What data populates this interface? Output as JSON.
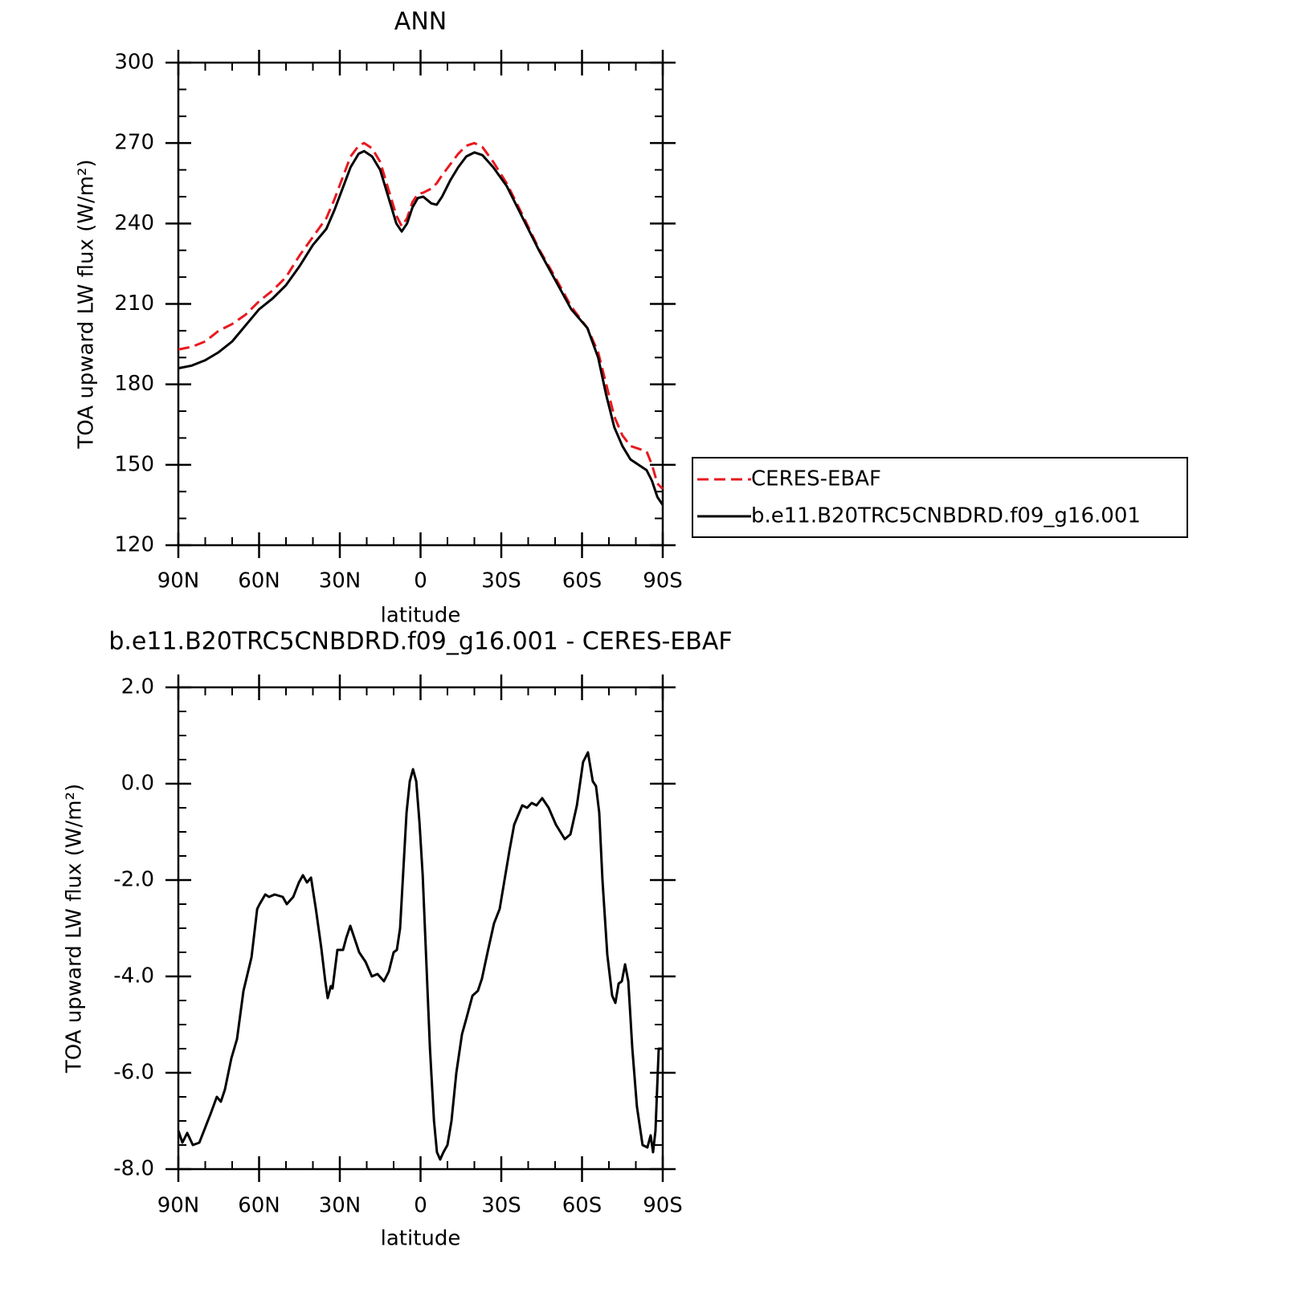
{
  "chart_data": [
    {
      "type": "line",
      "title": "ANN",
      "xlabel": "latitude",
      "ylabel": "TOA upward LW flux (W/m²)",
      "x": [
        90,
        85,
        80,
        75,
        70,
        65,
        60,
        55,
        50,
        45,
        40,
        35,
        32,
        29,
        26,
        23,
        21,
        18,
        15,
        12,
        9,
        7,
        5,
        3,
        1,
        -1,
        -4,
        -6,
        -8,
        -11,
        -14,
        -17,
        -20,
        -23,
        -27,
        -32,
        -38,
        -44,
        -50,
        -56,
        -62,
        -66,
        -69,
        -72,
        -75,
        -78,
        -81,
        -84,
        -86,
        -88,
        -90
      ],
      "series": [
        {
          "name": "CERES-EBAF",
          "color": "#e8191f",
          "dashed": true,
          "values": [
            193,
            194,
            196,
            200,
            202.5,
            206,
            211,
            215,
            220,
            228,
            235,
            242,
            249,
            257,
            265,
            269,
            270,
            268,
            263,
            253,
            243,
            239,
            242,
            248,
            251,
            251.5,
            253,
            255,
            258,
            262,
            266,
            269,
            270,
            268.5,
            263,
            255,
            243,
            230.5,
            220,
            209,
            201,
            192,
            180,
            168,
            161,
            157,
            156,
            155,
            150,
            143,
            141
          ]
        },
        {
          "name": "b.e11.B20TRC5CNBDRD.f09_g16.001",
          "color": "#000000",
          "dashed": false,
          "values": [
            186,
            187,
            189,
            192,
            196,
            202,
            208,
            212,
            217,
            224,
            232,
            238,
            245,
            253,
            261,
            266,
            267,
            265,
            260,
            250,
            240,
            237,
            240,
            246,
            249.5,
            250,
            247.5,
            247,
            250,
            256,
            261,
            265,
            266.5,
            265.5,
            261,
            254,
            242,
            230,
            219,
            208,
            201,
            190,
            176,
            164,
            157,
            152,
            150,
            148,
            144,
            138,
            135
          ]
        }
      ],
      "xlim": [
        90,
        -90
      ],
      "xticks": [
        {
          "value": 90,
          "label": "90N"
        },
        {
          "value": 60,
          "label": "60N"
        },
        {
          "value": 30,
          "label": "30N"
        },
        0,
        {
          "value": -30,
          "label": "30S"
        },
        {
          "value": -60,
          "label": "60S"
        },
        {
          "value": -90,
          "label": "90S"
        }
      ],
      "ylim": [
        120,
        300
      ],
      "yticks": [
        120,
        150,
        180,
        210,
        240,
        270,
        300
      ],
      "legend": "right"
    },
    {
      "type": "line",
      "title": "b.e11.B20TRC5CNBDRD.f09_g16.001 - CERES-EBAF",
      "xlabel": "latitude",
      "ylabel": "TOA upward LW flux (W/m²)",
      "x": [
        90,
        88.5,
        86.7,
        84.6,
        82.2,
        80.1,
        78,
        75.7,
        74.2,
        72.7,
        70.3,
        68.2,
        65.8,
        62.8,
        60.7,
        59.8,
        57.7,
        56.3,
        54.2,
        51.2,
        49.7,
        47.3,
        45.2,
        43.7,
        42.2,
        40.7,
        38.9,
        36.9,
        35.4,
        34.5,
        33.3,
        32.7,
        30.9,
        28.8,
        27.6,
        26.1,
        24.9,
        22.8,
        20.4,
        18.1,
        16,
        13.6,
        11.8,
        10,
        8.8,
        7.6,
        6.4,
        5.2,
        4,
        2.8,
        1.6,
        0.4,
        -0.8,
        -2,
        -3.5,
        -5,
        -6.1,
        -7.3,
        -8.5,
        -10,
        -11.5,
        -13.3,
        -15.4,
        -16.9,
        -19.3,
        -21.3,
        -22.8,
        -24.9,
        -27.3,
        -29.4,
        -31.2,
        -33,
        -34.8,
        -37.8,
        -39.6,
        -41.3,
        -43.1,
        -45.2,
        -47.6,
        -50.3,
        -53.6,
        -55.7,
        -58.1,
        -60.4,
        -62.2,
        -64,
        -65.2,
        -66.4,
        -67.6,
        -69.4,
        -71.2,
        -72.4,
        -73.6,
        -74.8,
        -76,
        -77.2,
        -78.7,
        -80.4,
        -82.5,
        -84.3,
        -85.5,
        -86.4,
        -87.3,
        -88.5,
        -90
      ],
      "values": [
        -7.2,
        -7.45,
        -7.25,
        -7.5,
        -7.45,
        -7.15,
        -6.85,
        -6.5,
        -6.6,
        -6.35,
        -5.7,
        -5.3,
        -4.3,
        -3.6,
        -2.6,
        -2.5,
        -2.3,
        -2.35,
        -2.3,
        -2.35,
        -2.5,
        -2.35,
        -2.05,
        -1.9,
        -2.05,
        -1.95,
        -2.6,
        -3.4,
        -4.1,
        -4.45,
        -4.2,
        -4.25,
        -3.45,
        -3.45,
        -3.2,
        -2.95,
        -3.15,
        -3.5,
        -3.7,
        -4,
        -3.95,
        -4.1,
        -3.9,
        -3.5,
        -3.45,
        -3,
        -1.8,
        -0.6,
        0.05,
        0.3,
        0.05,
        -0.8,
        -1.9,
        -3.5,
        -5.5,
        -7,
        -7.65,
        -7.8,
        -7.65,
        -7.5,
        -7,
        -6,
        -5.2,
        -4.9,
        -4.4,
        -4.3,
        -4.05,
        -3.5,
        -2.9,
        -2.6,
        -2,
        -1.4,
        -0.85,
        -0.45,
        -0.5,
        -0.4,
        -0.45,
        -0.3,
        -0.5,
        -0.85,
        -1.15,
        -1.05,
        -0.45,
        0.45,
        0.65,
        0.05,
        -0.05,
        -0.6,
        -2,
        -3.55,
        -4.4,
        -4.55,
        -4.15,
        -4.1,
        -3.75,
        -4.1,
        -5.5,
        -6.7,
        -7.5,
        -7.55,
        -7.3,
        -7.65,
        -7.2,
        -5.5,
        -5.5
      ],
      "color": "#000000",
      "xlim": [
        90,
        -90
      ],
      "xticks": [
        {
          "value": 90,
          "label": "90N"
        },
        {
          "value": 60,
          "label": "60N"
        },
        {
          "value": 30,
          "label": "30N"
        },
        0,
        {
          "value": -30,
          "label": "30S"
        },
        {
          "value": -60,
          "label": "60S"
        },
        {
          "value": -90,
          "label": "90S"
        }
      ],
      "ylim": [
        -8,
        2
      ],
      "yticks": [
        {
          "value": -8,
          "label": "-8.0"
        },
        {
          "value": -6,
          "label": "-6.0"
        },
        {
          "value": -4,
          "label": "-4.0"
        },
        {
          "value": -2,
          "label": "-2.0"
        },
        {
          "value": 0,
          "label": "0.0"
        },
        {
          "value": 2,
          "label": "2.0"
        }
      ]
    }
  ]
}
